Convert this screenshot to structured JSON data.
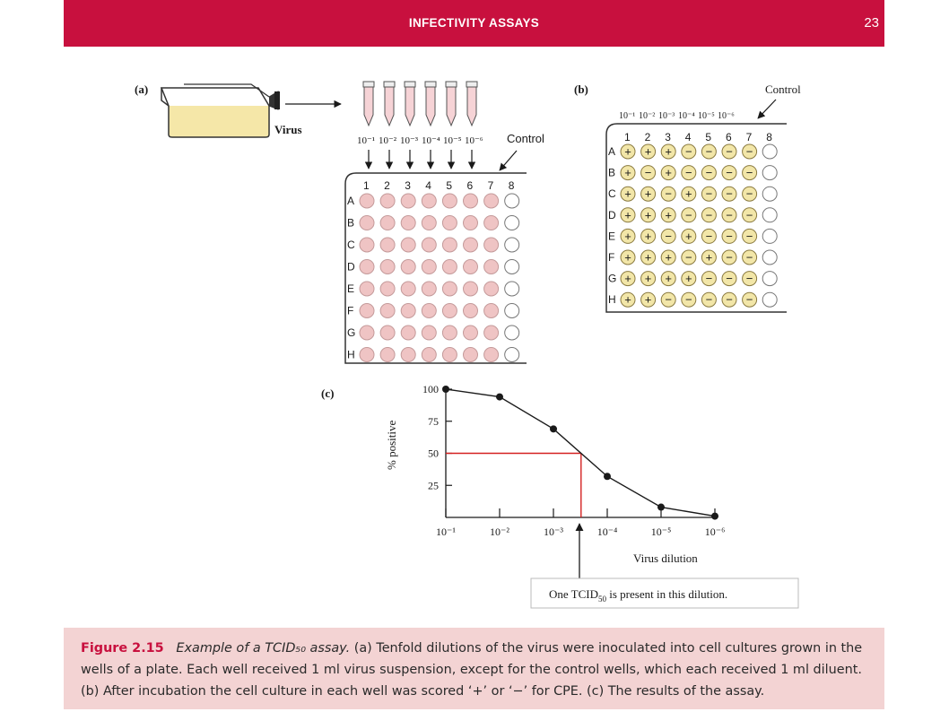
{
  "header": {
    "title": "INFECTIVITY ASSAYS",
    "page_number": "23"
  },
  "panel_a": {
    "label": "(a)",
    "flask_label": "Virus",
    "dilution_labels": [
      "10⁻¹",
      "10⁻²",
      "10⁻³",
      "10⁻⁴",
      "10⁻⁵",
      "10⁻⁶"
    ],
    "control_label": "Control",
    "column_labels": [
      "1",
      "2",
      "3",
      "4",
      "5",
      "6",
      "7",
      "8"
    ],
    "row_labels": [
      "A",
      "B",
      "C",
      "D",
      "E",
      "F",
      "G",
      "H"
    ]
  },
  "panel_b": {
    "label": "(b)",
    "dilution_labels": [
      "10⁻¹",
      "10⁻²",
      "10⁻³",
      "10⁻⁴",
      "10⁻⁵",
      "10⁻⁶"
    ],
    "control_label": "Control",
    "column_labels": [
      "1",
      "2",
      "3",
      "4",
      "5",
      "6",
      "7",
      "8"
    ],
    "row_labels": [
      "A",
      "B",
      "C",
      "D",
      "E",
      "F",
      "G",
      "H"
    ],
    "results": [
      [
        "+",
        "+",
        "+",
        "−",
        "−",
        "−",
        "−",
        ""
      ],
      [
        "+",
        "−",
        "+",
        "−",
        "−",
        "−",
        "−",
        ""
      ],
      [
        "+",
        "+",
        "−",
        "+",
        "−",
        "−",
        "−",
        ""
      ],
      [
        "+",
        "+",
        "+",
        "−",
        "−",
        "−",
        "−",
        ""
      ],
      [
        "+",
        "+",
        "−",
        "+",
        "−",
        "−",
        "−",
        ""
      ],
      [
        "+",
        "+",
        "+",
        "−",
        "+",
        "−",
        "−",
        ""
      ],
      [
        "+",
        "+",
        "+",
        "+",
        "−",
        "−",
        "−",
        ""
      ],
      [
        "+",
        "+",
        "−",
        "−",
        "−",
        "−",
        "−",
        ""
      ]
    ]
  },
  "chart_data": {
    "label": "(c)",
    "type": "line",
    "x": [
      "10⁻¹",
      "10⁻²",
      "10⁻³",
      "10⁻⁴",
      "10⁻⁵",
      "10⁻⁶"
    ],
    "y": [
      100,
      94,
      69,
      32,
      8,
      1
    ],
    "ylabel": "% positive",
    "xlabel": "Virus dilution",
    "yticks": [
      25,
      50,
      75,
      100
    ],
    "ylim": [
      0,
      100
    ],
    "tcid50_marker": {
      "y": 50,
      "x_position": "between 10⁻³ and 10⁻⁴"
    },
    "annotation": {
      "prefix": "One TCID",
      "subscript": "50",
      "suffix": " is present in this dilution."
    },
    "colors": {
      "series": "#1a1a1a",
      "marker_line": "#d42020"
    }
  },
  "caption": {
    "label": "Figure 2.15",
    "title": "Example of a TCID₅₀ assay.",
    "text": " (a) Tenfold dilutions of the virus were inoculated into cell cultures grown in the wells of a plate. Each well received 1 ml virus suspension, except for the control wells, which each received 1 ml diluent. (b) After incubation the cell culture in each well was scored ‘+’ or ‘−’ for CPE. (c) The results of the assay."
  },
  "colors": {
    "header": "#c8103e",
    "caption_bg": "#f3d3d3",
    "well_a": "#efc4c4",
    "well_b": "#f2e6a8"
  }
}
